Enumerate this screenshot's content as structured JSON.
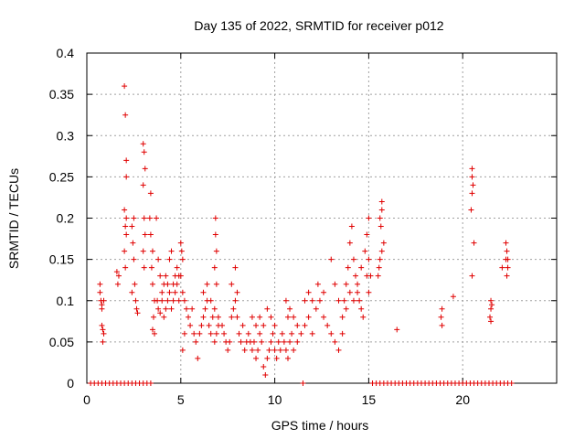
{
  "chart_data": {
    "type": "scatter",
    "title": "Day 135 of 2022, SRMTID for receiver p012",
    "xlabel": "GPS time / hours",
    "ylabel": "SRMTID / TECUs",
    "xlim": [
      0,
      25
    ],
    "ylim": [
      0,
      0.4
    ],
    "xticks": [
      0,
      5,
      10,
      15,
      20
    ],
    "yticks": [
      0,
      0.05,
      0.1,
      0.15,
      0.2,
      0.25,
      0.3,
      0.35,
      0.4
    ],
    "xtick_labels": [
      "0",
      "5",
      "10",
      "15",
      "20"
    ],
    "ytick_labels": [
      "0",
      "0.05",
      "0.1",
      "0.15",
      "0.2",
      "0.25",
      "0.3",
      "0.35",
      "0.4"
    ],
    "grid": true,
    "marker": "+",
    "color": "#e00000",
    "series": [
      {
        "name": "SRMTID",
        "points": [
          [
            0.2,
            0
          ],
          [
            0.4,
            0
          ],
          [
            0.6,
            0
          ],
          [
            0.8,
            0
          ],
          [
            1.0,
            0
          ],
          [
            1.2,
            0
          ],
          [
            1.4,
            0
          ],
          [
            1.6,
            0
          ],
          [
            1.8,
            0
          ],
          [
            2.0,
            0
          ],
          [
            2.2,
            0
          ],
          [
            2.4,
            0
          ],
          [
            2.6,
            0
          ],
          [
            2.8,
            0
          ],
          [
            3.0,
            0
          ],
          [
            3.2,
            0
          ],
          [
            3.4,
            0
          ],
          [
            11.5,
            0
          ],
          [
            15.2,
            0
          ],
          [
            15.4,
            0
          ],
          [
            15.6,
            0
          ],
          [
            15.8,
            0
          ],
          [
            16.0,
            0
          ],
          [
            16.2,
            0
          ],
          [
            16.4,
            0
          ],
          [
            16.6,
            0
          ],
          [
            16.8,
            0
          ],
          [
            17.0,
            0
          ],
          [
            17.2,
            0
          ],
          [
            17.4,
            0
          ],
          [
            17.6,
            0
          ],
          [
            17.8,
            0
          ],
          [
            18.0,
            0
          ],
          [
            18.2,
            0
          ],
          [
            18.4,
            0
          ],
          [
            18.6,
            0
          ],
          [
            18.8,
            0
          ],
          [
            19.0,
            0
          ],
          [
            19.2,
            0
          ],
          [
            19.4,
            0
          ],
          [
            19.6,
            0
          ],
          [
            19.8,
            0
          ],
          [
            20.0,
            0
          ],
          [
            20.2,
            0
          ],
          [
            20.4,
            0
          ],
          [
            20.6,
            0
          ],
          [
            20.8,
            0
          ],
          [
            21.0,
            0
          ],
          [
            21.2,
            0
          ],
          [
            21.4,
            0
          ],
          [
            21.6,
            0
          ],
          [
            21.8,
            0
          ],
          [
            22.0,
            0
          ],
          [
            22.2,
            0
          ],
          [
            22.4,
            0
          ],
          [
            22.6,
            0
          ],
          [
            0.7,
            0.12
          ],
          [
            0.7,
            0.11
          ],
          [
            0.75,
            0.1
          ],
          [
            0.8,
            0.09
          ],
          [
            0.8,
            0.07
          ],
          [
            0.85,
            0.065
          ],
          [
            0.85,
            0.05
          ],
          [
            0.9,
            0.06
          ],
          [
            0.8,
            0.095
          ],
          [
            0.9,
            0.1
          ],
          [
            1.6,
            0.135
          ],
          [
            1.65,
            0.12
          ],
          [
            1.7,
            0.13
          ],
          [
            2.0,
            0.36
          ],
          [
            2.05,
            0.325
          ],
          [
            2.1,
            0.27
          ],
          [
            2.1,
            0.25
          ],
          [
            2.0,
            0.21
          ],
          [
            2.05,
            0.19
          ],
          [
            2.1,
            0.18
          ],
          [
            2.0,
            0.16
          ],
          [
            2.05,
            0.14
          ],
          [
            2.1,
            0.2
          ],
          [
            2.4,
            0.19
          ],
          [
            2.45,
            0.17
          ],
          [
            2.5,
            0.15
          ],
          [
            2.55,
            0.12
          ],
          [
            2.6,
            0.1
          ],
          [
            2.65,
            0.09
          ],
          [
            2.5,
            0.2
          ],
          [
            2.4,
            0.11
          ],
          [
            2.7,
            0.085
          ],
          [
            3.0,
            0.29
          ],
          [
            3.05,
            0.28
          ],
          [
            3.1,
            0.26
          ],
          [
            3.0,
            0.24
          ],
          [
            3.05,
            0.2
          ],
          [
            3.1,
            0.18
          ],
          [
            3.0,
            0.16
          ],
          [
            3.05,
            0.14
          ],
          [
            3.4,
            0.23
          ],
          [
            3.35,
            0.2
          ],
          [
            3.4,
            0.18
          ],
          [
            3.5,
            0.16
          ],
          [
            3.45,
            0.14
          ],
          [
            3.5,
            0.12
          ],
          [
            3.6,
            0.1
          ],
          [
            3.55,
            0.08
          ],
          [
            3.5,
            0.065
          ],
          [
            3.6,
            0.06
          ],
          [
            3.7,
            0.2
          ],
          [
            3.8,
            0.15
          ],
          [
            3.9,
            0.13
          ],
          [
            3.75,
            0.1
          ],
          [
            3.8,
            0.09
          ],
          [
            3.9,
            0.085
          ],
          [
            4.0,
            0.11
          ],
          [
            4.1,
            0.12
          ],
          [
            4.2,
            0.13
          ],
          [
            4.3,
            0.1
          ],
          [
            4.4,
            0.15
          ],
          [
            4.5,
            0.16
          ],
          [
            4.6,
            0.12
          ],
          [
            4.7,
            0.11
          ],
          [
            4.8,
            0.14
          ],
          [
            4.9,
            0.13
          ],
          [
            4.0,
            0.1
          ],
          [
            4.1,
            0.08
          ],
          [
            4.2,
            0.09
          ],
          [
            4.3,
            0.12
          ],
          [
            4.4,
            0.11
          ],
          [
            4.5,
            0.09
          ],
          [
            4.6,
            0.1
          ],
          [
            4.7,
            0.13
          ],
          [
            4.8,
            0.12
          ],
          [
            4.9,
            0.1
          ],
          [
            5.0,
            0.17
          ],
          [
            5.05,
            0.16
          ],
          [
            5.1,
            0.15
          ],
          [
            5.0,
            0.13
          ],
          [
            5.1,
            0.11
          ],
          [
            5.2,
            0.1
          ],
          [
            5.3,
            0.09
          ],
          [
            5.4,
            0.08
          ],
          [
            5.5,
            0.07
          ],
          [
            5.2,
            0.06
          ],
          [
            5.1,
            0.04
          ],
          [
            5.6,
            0.09
          ],
          [
            5.7,
            0.06
          ],
          [
            5.8,
            0.05
          ],
          [
            5.9,
            0.03
          ],
          [
            6.0,
            0.06
          ],
          [
            6.1,
            0.07
          ],
          [
            6.2,
            0.08
          ],
          [
            6.3,
            0.09
          ],
          [
            6.4,
            0.1
          ],
          [
            6.5,
            0.07
          ],
          [
            6.6,
            0.06
          ],
          [
            6.7,
            0.08
          ],
          [
            6.8,
            0.05
          ],
          [
            6.9,
            0.06
          ],
          [
            7.0,
            0.08
          ],
          [
            6.2,
            0.11
          ],
          [
            6.4,
            0.12
          ],
          [
            6.6,
            0.1
          ],
          [
            6.8,
            0.09
          ],
          [
            7.0,
            0.07
          ],
          [
            6.85,
            0.2
          ],
          [
            6.85,
            0.18
          ],
          [
            6.9,
            0.16
          ],
          [
            6.8,
            0.14
          ],
          [
            6.9,
            0.12
          ],
          [
            7.2,
            0.07
          ],
          [
            7.3,
            0.06
          ],
          [
            7.4,
            0.05
          ],
          [
            7.5,
            0.04
          ],
          [
            7.6,
            0.05
          ],
          [
            7.7,
            0.08
          ],
          [
            7.8,
            0.09
          ],
          [
            7.9,
            0.1
          ],
          [
            8.0,
            0.08
          ],
          [
            8.1,
            0.06
          ],
          [
            8.2,
            0.05
          ],
          [
            8.3,
            0.07
          ],
          [
            8.4,
            0.04
          ],
          [
            8.5,
            0.05
          ],
          [
            7.9,
            0.14
          ],
          [
            8.0,
            0.11
          ],
          [
            7.7,
            0.12
          ],
          [
            8.6,
            0.06
          ],
          [
            8.7,
            0.05
          ],
          [
            8.8,
            0.04
          ],
          [
            8.9,
            0.05
          ],
          [
            9.0,
            0.03
          ],
          [
            9.1,
            0.04
          ],
          [
            9.2,
            0.06
          ],
          [
            9.3,
            0.05
          ],
          [
            9.4,
            0.02
          ],
          [
            9.5,
            0.01
          ],
          [
            9.6,
            0.03
          ],
          [
            9.7,
            0.04
          ],
          [
            9.8,
            0.05
          ],
          [
            9.9,
            0.06
          ],
          [
            10.0,
            0.04
          ],
          [
            8.8,
            0.08
          ],
          [
            9.0,
            0.07
          ],
          [
            9.2,
            0.08
          ],
          [
            9.4,
            0.07
          ],
          [
            9.6,
            0.09
          ],
          [
            9.8,
            0.08
          ],
          [
            10.0,
            0.07
          ],
          [
            10.1,
            0.03
          ],
          [
            10.2,
            0.05
          ],
          [
            10.3,
            0.04
          ],
          [
            10.4,
            0.06
          ],
          [
            10.5,
            0.05
          ],
          [
            10.6,
            0.04
          ],
          [
            10.7,
            0.03
          ],
          [
            10.8,
            0.05
          ],
          [
            10.9,
            0.06
          ],
          [
            11.0,
            0.04
          ],
          [
            10.6,
            0.1
          ],
          [
            10.8,
            0.09
          ],
          [
            10.7,
            0.08
          ],
          [
            11.0,
            0.08
          ],
          [
            11.2,
            0.07
          ],
          [
            11.2,
            0.05
          ],
          [
            11.4,
            0.06
          ],
          [
            11.6,
            0.07
          ],
          [
            11.8,
            0.08
          ],
          [
            12.0,
            0.06
          ],
          [
            12.2,
            0.09
          ],
          [
            12.4,
            0.1
          ],
          [
            12.6,
            0.08
          ],
          [
            12.8,
            0.07
          ],
          [
            13.0,
            0.06
          ],
          [
            13.2,
            0.05
          ],
          [
            13.4,
            0.04
          ],
          [
            13.6,
            0.06
          ],
          [
            11.6,
            0.1
          ],
          [
            11.8,
            0.11
          ],
          [
            12.0,
            0.1
          ],
          [
            12.3,
            0.12
          ],
          [
            12.6,
            0.11
          ],
          [
            13.0,
            0.15
          ],
          [
            13.2,
            0.12
          ],
          [
            13.4,
            0.1
          ],
          [
            13.6,
            0.08
          ],
          [
            13.7,
            0.1
          ],
          [
            13.8,
            0.12
          ],
          [
            13.9,
            0.14
          ],
          [
            14.0,
            0.17
          ],
          [
            14.1,
            0.19
          ],
          [
            14.2,
            0.15
          ],
          [
            14.3,
            0.13
          ],
          [
            14.4,
            0.11
          ],
          [
            14.5,
            0.1
          ],
          [
            14.6,
            0.09
          ],
          [
            14.7,
            0.08
          ],
          [
            13.8,
            0.09
          ],
          [
            14.0,
            0.11
          ],
          [
            14.2,
            0.1
          ],
          [
            14.4,
            0.12
          ],
          [
            14.6,
            0.14
          ],
          [
            14.8,
            0.16
          ],
          [
            14.9,
            0.18
          ],
          [
            15.0,
            0.2
          ],
          [
            15.0,
            0.15
          ],
          [
            15.1,
            0.13
          ],
          [
            15.0,
            0.11
          ],
          [
            14.9,
            0.13
          ],
          [
            15.7,
            0.22
          ],
          [
            15.7,
            0.21
          ],
          [
            15.6,
            0.2
          ],
          [
            15.65,
            0.19
          ],
          [
            15.8,
            0.17
          ],
          [
            15.7,
            0.16
          ],
          [
            15.6,
            0.15
          ],
          [
            15.55,
            0.14
          ],
          [
            15.5,
            0.13
          ],
          [
            16.5,
            0.065
          ],
          [
            18.9,
            0.09
          ],
          [
            18.85,
            0.08
          ],
          [
            18.9,
            0.07
          ],
          [
            19.5,
            0.105
          ],
          [
            20.5,
            0.26
          ],
          [
            20.5,
            0.25
          ],
          [
            20.55,
            0.24
          ],
          [
            20.5,
            0.23
          ],
          [
            20.45,
            0.21
          ],
          [
            20.6,
            0.17
          ],
          [
            20.5,
            0.13
          ],
          [
            21.5,
            0.1
          ],
          [
            21.55,
            0.095
          ],
          [
            21.5,
            0.09
          ],
          [
            21.45,
            0.08
          ],
          [
            21.5,
            0.075
          ],
          [
            22.1,
            0.14
          ],
          [
            22.3,
            0.17
          ],
          [
            22.35,
            0.16
          ],
          [
            22.4,
            0.15
          ],
          [
            22.3,
            0.15
          ],
          [
            22.4,
            0.14
          ],
          [
            22.35,
            0.13
          ]
        ]
      }
    ]
  }
}
